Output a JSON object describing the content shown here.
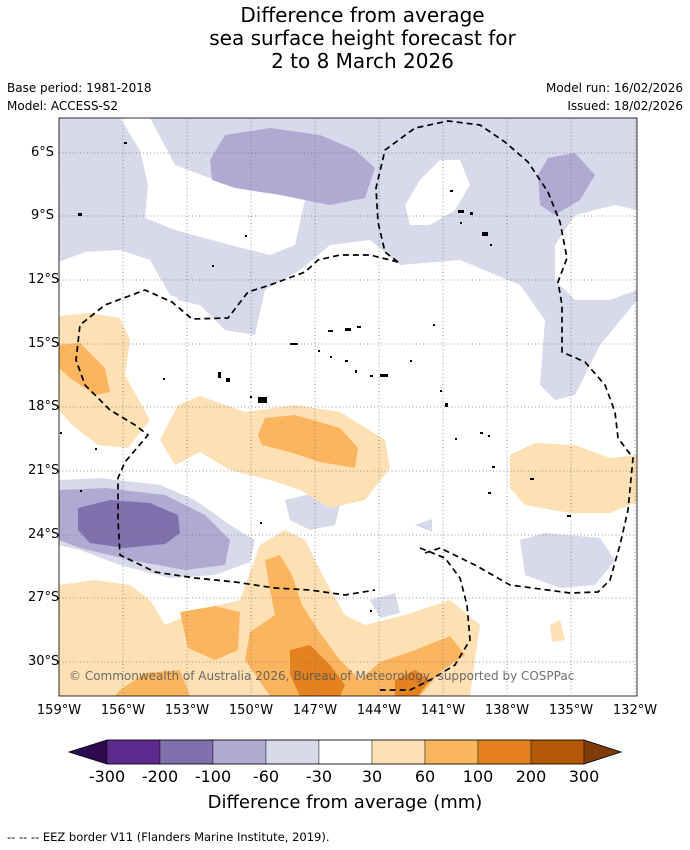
{
  "header": {
    "title_lines": [
      "Difference from average",
      "sea surface height forecast for",
      "2 to 8 March 2026"
    ],
    "base_period": "Base period: 1981-2018",
    "model": "Model: ACCESS-S2",
    "model_run": "Model run: 16/02/2026",
    "issued": "Issued: 18/02/2026"
  },
  "map": {
    "lat_labels": [
      "6°S",
      "9°S",
      "12°S",
      "15°S",
      "18°S",
      "21°S",
      "24°S",
      "27°S",
      "30°S"
    ],
    "lon_labels": [
      "159°W",
      "156°W",
      "153°W",
      "150°W",
      "147°W",
      "144°W",
      "141°W",
      "138°W",
      "135°W",
      "132°W"
    ],
    "copyright": "© Commonwealth of Australia 2026, Bureau of Meteorology, supported by COSPPac"
  },
  "colorbar": {
    "labels": [
      "-300",
      "-200",
      "-100",
      "-60",
      "-30",
      "30",
      "60",
      "100",
      "200",
      "300"
    ],
    "colors": [
      "#2d0a52",
      "#5b2a8c",
      "#8070ae",
      "#b0aad2",
      "#d8d9ea",
      "#ffffff",
      "#fde0b4",
      "#fbb55e",
      "#e3821e",
      "#b35807",
      "#7f3b08"
    ],
    "title": "Difference from average (mm)"
  },
  "footer": {
    "legend": "--  --  -- EEZ border V11 (Flanders Marine Institute, 2019)."
  }
}
